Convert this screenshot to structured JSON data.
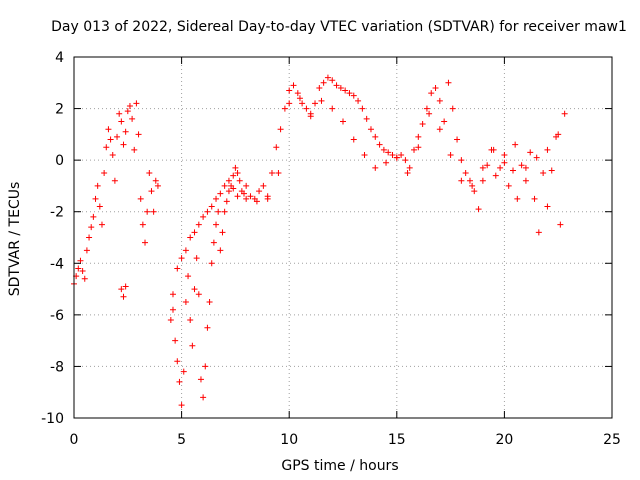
{
  "chart_data": {
    "type": "scatter",
    "title": "Day 013 of 2022, Sidereal Day-to-day VTEC variation (SDTVAR) for receiver maw1",
    "xlabel": "GPS time / hours",
    "ylabel": "SDTVAR / TECUs",
    "xlim": [
      0,
      25
    ],
    "ylim": [
      -10,
      4
    ],
    "xticks": [
      0,
      5,
      10,
      15,
      20,
      25
    ],
    "yticks": [
      -10,
      -8,
      -6,
      -4,
      -2,
      0,
      2,
      4
    ],
    "grid": true,
    "marker": "plus",
    "color": "#ff0000",
    "series": [
      {
        "name": "SDTVAR",
        "x": [
          0.0,
          0.1,
          0.2,
          0.3,
          0.4,
          0.5,
          0.6,
          0.7,
          0.8,
          0.9,
          1.0,
          1.1,
          1.2,
          1.3,
          1.4,
          1.5,
          1.6,
          1.7,
          1.8,
          1.9,
          2.0,
          2.1,
          2.2,
          2.3,
          2.4,
          2.5,
          2.6,
          2.7,
          2.8,
          2.9,
          3.0,
          3.1,
          3.2,
          3.3,
          3.4,
          3.5,
          3.6,
          3.7,
          3.8,
          3.9,
          2.2,
          2.3,
          2.4,
          4.5,
          4.6,
          4.7,
          4.8,
          4.9,
          5.0,
          5.1,
          5.2,
          5.3,
          5.4,
          5.5,
          5.6,
          5.7,
          5.8,
          5.9,
          6.0,
          6.1,
          6.2,
          6.3,
          6.4,
          6.5,
          6.6,
          6.7,
          6.8,
          6.9,
          7.0,
          7.1,
          7.2,
          7.3,
          7.4,
          7.5,
          7.6,
          7.7,
          7.8,
          7.9,
          8.0,
          8.2,
          8.4,
          8.6,
          8.8,
          9.0,
          9.2,
          9.4,
          9.6,
          9.8,
          10.0,
          10.2,
          10.4,
          10.6,
          10.8,
          11.0,
          11.2,
          11.4,
          11.6,
          11.8,
          12.0,
          12.2,
          12.4,
          12.6,
          12.8,
          13.0,
          13.2,
          13.4,
          13.6,
          13.8,
          14.0,
          14.2,
          14.4,
          14.6,
          14.8,
          15.0,
          15.2,
          15.4,
          15.6,
          15.8,
          16.0,
          16.2,
          16.4,
          16.6,
          16.8,
          17.0,
          17.2,
          17.4,
          17.6,
          17.8,
          18.0,
          18.2,
          18.4,
          18.6,
          18.8,
          19.0,
          19.2,
          19.4,
          19.6,
          19.8,
          20.0,
          20.2,
          20.4,
          20.6,
          20.8,
          21.0,
          21.2,
          21.4,
          21.6,
          21.8,
          22.0,
          22.2,
          22.4,
          22.6,
          22.8,
          4.6,
          4.8,
          5.0,
          5.2,
          5.4,
          5.6,
          5.8,
          6.0,
          6.2,
          6.4,
          6.6,
          6.8,
          7.0,
          7.2,
          7.4,
          7.6,
          8.0,
          8.5,
          9.0,
          9.5,
          10.0,
          10.5,
          11.0,
          11.5,
          12.0,
          12.5,
          13.0,
          13.5,
          14.0,
          14.5,
          15.0,
          15.5,
          16.0,
          16.5,
          17.0,
          17.5,
          18.0,
          18.5,
          19.0,
          19.5,
          20.0,
          20.5,
          21.0,
          21.5,
          22.0,
          22.5
        ],
        "y": [
          -4.8,
          -4.5,
          -4.2,
          -3.9,
          -4.3,
          -4.6,
          -3.5,
          -3.0,
          -2.6,
          -2.2,
          -1.5,
          -1.0,
          -1.8,
          -2.5,
          -0.5,
          0.5,
          1.2,
          0.8,
          0.2,
          -0.8,
          0.9,
          1.8,
          1.5,
          0.6,
          1.1,
          1.9,
          2.1,
          1.6,
          0.4,
          2.2,
          1.0,
          -1.5,
          -2.5,
          -3.2,
          -2.0,
          -0.5,
          -1.2,
          -2.0,
          -0.8,
          -1.0,
          -5.0,
          -5.3,
          -4.9,
          -6.2,
          -5.8,
          -7.0,
          -7.8,
          -8.6,
          -9.5,
          -8.2,
          -5.5,
          -4.5,
          -6.2,
          -7.2,
          -5.0,
          -3.8,
          -5.2,
          -8.5,
          -9.2,
          -8.0,
          -6.5,
          -5.5,
          -4.0,
          -3.2,
          -2.5,
          -2.0,
          -3.5,
          -2.8,
          -2.0,
          -1.6,
          -1.2,
          -1.0,
          -0.6,
          -0.3,
          -0.5,
          -0.8,
          -1.2,
          -1.3,
          -1.0,
          -1.4,
          -1.5,
          -1.2,
          -1.0,
          -1.5,
          -0.5,
          0.5,
          1.2,
          2.0,
          2.7,
          2.9,
          2.6,
          2.2,
          2.0,
          1.8,
          2.2,
          2.8,
          3.0,
          3.2,
          3.1,
          2.9,
          2.8,
          2.7,
          2.6,
          2.5,
          2.3,
          2.0,
          1.6,
          1.2,
          0.9,
          0.6,
          0.4,
          0.3,
          0.2,
          0.1,
          0.2,
          0.0,
          -0.3,
          0.4,
          0.9,
          1.4,
          2.0,
          2.6,
          2.8,
          2.3,
          1.5,
          3.0,
          2.0,
          0.8,
          0.0,
          -0.5,
          -0.8,
          -1.2,
          -1.9,
          -0.8,
          -0.2,
          0.4,
          -0.6,
          -0.3,
          -0.1,
          -1.0,
          -0.4,
          -1.5,
          -0.2,
          -0.8,
          0.3,
          -1.5,
          -2.8,
          -0.5,
          -1.8,
          -0.4,
          0.9,
          -2.5,
          1.8,
          -5.2,
          -4.2,
          -3.8,
          -3.5,
          -3.0,
          -2.8,
          -2.5,
          -2.2,
          -2.0,
          -1.8,
          -1.5,
          -1.3,
          -1.0,
          -0.8,
          -1.1,
          -1.4,
          -1.5,
          -1.6,
          -1.4,
          -0.5,
          2.2,
          2.4,
          1.7,
          2.3,
          2.0,
          1.5,
          0.8,
          0.2,
          -0.3,
          -0.1,
          0.1,
          -0.5,
          0.5,
          1.8,
          1.2,
          0.2,
          -0.8,
          -1.0,
          -0.3,
          0.4,
          0.2,
          0.6,
          -0.3,
          0.1,
          0.4,
          1.0
        ]
      }
    ]
  }
}
